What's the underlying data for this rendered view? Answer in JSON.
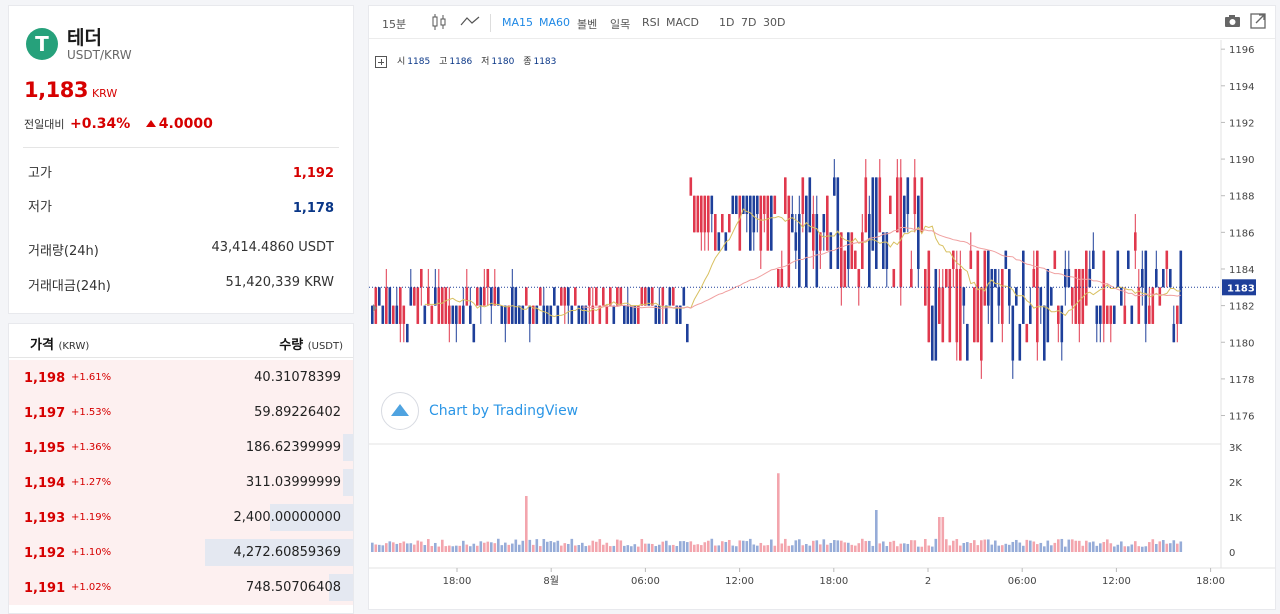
{
  "coin": {
    "name": "테더",
    "pair": "USDT/KRW",
    "logo": "T",
    "price": "1,183",
    "unit": "KRW",
    "change_label": "전일대비",
    "change_pct": "+0.34%",
    "change_abs": "4.0000"
  },
  "stats": [
    {
      "label": "고가",
      "value": "1,192"
    },
    {
      "label": "저가",
      "value": "1,178"
    },
    {
      "label": "거래량(24h)",
      "value": "43,414.4860 USDT"
    },
    {
      "label": "거래대금(24h)",
      "value": "51,420,339 KRW"
    }
  ],
  "orderbook": {
    "price_header": "가격",
    "price_unit": "(KRW)",
    "qty_header": "수량",
    "qty_unit": "(USDT)",
    "rows": [
      {
        "price": "1,198",
        "pct": "+1.61%",
        "qty": "40.31078399",
        "depth": 0.0
      },
      {
        "price": "1,197",
        "pct": "+1.53%",
        "qty": "59.89226402",
        "depth": 0.0
      },
      {
        "price": "1,195",
        "pct": "+1.36%",
        "qty": "186.62399999",
        "depth": 0.03
      },
      {
        "price": "1,194",
        "pct": "+1.27%",
        "qty": "311.03999999",
        "depth": 0.03
      },
      {
        "price": "1,193",
        "pct": "+1.19%",
        "qty": "2,400.00000000",
        "depth": 0.24
      },
      {
        "price": "1,192",
        "pct": "+1.10%",
        "qty": "4,272.60859369",
        "depth": 0.43
      },
      {
        "price": "1,191",
        "pct": "+1.02%",
        "qty": "748.50706408",
        "depth": 0.07
      }
    ]
  },
  "toolbar": {
    "interval": "15분",
    "ma15": "MA15",
    "ma60": "MA60",
    "bollinger": "볼벤",
    "ichimoku": "일목",
    "rsi": "RSI",
    "macd": "MACD",
    "d1": "1D",
    "d7": "7D",
    "d30": "30D",
    "icons": [
      "candle-icon",
      "line-icon",
      "camera-icon",
      "fullscreen-icon"
    ]
  },
  "ohlc": {
    "o_label": "시",
    "o": "1185",
    "h_label": "고",
    "h": "1186",
    "l_label": "저",
    "l": "1180",
    "c_label": "종",
    "c": "1183"
  },
  "tradingview": "Chart by TradingView",
  "colors": {
    "up": "#e0384d",
    "down": "#1e3f9a",
    "ma15": "#d8c060",
    "ma60": "#f0a0a0",
    "last": "#1e3f9a",
    "vol_up": "#f3a5ad",
    "vol_down": "#96acd8"
  },
  "chart_data": {
    "type": "candlestick",
    "y_ticks": [
      1176,
      1178,
      1180,
      1182,
      1184,
      1186,
      1188,
      1190,
      1192,
      1194,
      1196
    ],
    "ylim": [
      1174.5,
      1196.5
    ],
    "last_price": 1183,
    "volume_ticks": [
      "0",
      "1K",
      "2K",
      "3K"
    ],
    "volume_ylim": [
      0,
      3000
    ],
    "x_ticks": [
      "18:00",
      "8월",
      "06:00",
      "12:00",
      "18:00",
      "2",
      "06:00",
      "12:00",
      "18:00"
    ],
    "segments": [
      {
        "from": 0.0,
        "to": 0.2,
        "lo": 1180,
        "hi": 1184,
        "base": 1182
      },
      {
        "from": 0.2,
        "to": 0.39,
        "lo": 1181,
        "hi": 1183,
        "base": 1182
      },
      {
        "from": 0.39,
        "to": 0.5,
        "lo": 1182,
        "hi": 1188,
        "base": 1187
      },
      {
        "from": 0.5,
        "to": 0.68,
        "lo": 1182,
        "hi": 1192,
        "base": 1186
      },
      {
        "from": 0.68,
        "to": 0.85,
        "lo": 1178,
        "hi": 1187,
        "base": 1182
      },
      {
        "from": 0.85,
        "to": 0.92,
        "lo": 1180,
        "hi": 1187,
        "base": 1183
      }
    ],
    "volume_spikes": [
      {
        "at": 0.19,
        "value": 1600
      },
      {
        "at": 0.5,
        "value": 2250
      },
      {
        "at": 0.62,
        "value": 1200
      },
      {
        "at": 0.7,
        "value": 1000
      }
    ],
    "ma15_note": "yellow line",
    "ma60_note": "pink line"
  }
}
